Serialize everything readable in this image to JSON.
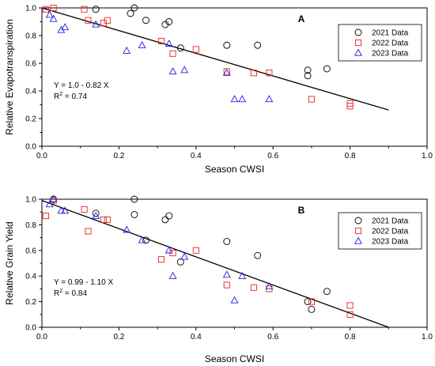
{
  "chart_data": [
    {
      "type": "scatter",
      "panel_label": "A",
      "xlabel": "Season CWSI",
      "ylabel": "Relative Evapotranspiration",
      "xlim": [
        0.0,
        1.0
      ],
      "ylim": [
        0.0,
        1.0
      ],
      "xticks": [
        "0.0",
        "0.2",
        "0.4",
        "0.6",
        "0.8",
        "1.0"
      ],
      "yticks": [
        "0.0",
        "0.2",
        "0.4",
        "0.6",
        "0.8",
        "1.0"
      ],
      "legend_position": "top-right",
      "equation": "Y = 1.0 - 0.82 X",
      "r2_prefix": "R",
      "r2_sup": "2",
      "r2_suffix": " = 0.74",
      "fit": {
        "intercept": 1.0,
        "slope": -0.82,
        "x_range": [
          0.0,
          0.9
        ]
      },
      "series": [
        {
          "name": "2021 Data",
          "marker": "circle",
          "color": "#000000",
          "points": [
            [
              0.14,
              0.99
            ],
            [
              0.24,
              1.0
            ],
            [
              0.23,
              0.96
            ],
            [
              0.27,
              0.91
            ],
            [
              0.32,
              0.88
            ],
            [
              0.33,
              0.9
            ],
            [
              0.36,
              0.71
            ],
            [
              0.48,
              0.73
            ],
            [
              0.56,
              0.73
            ],
            [
              0.69,
              0.51
            ],
            [
              0.69,
              0.55
            ],
            [
              0.74,
              0.56
            ]
          ]
        },
        {
          "name": "2022 Data",
          "marker": "square",
          "color": "#e8231f",
          "points": [
            [
              0.01,
              0.99
            ],
            [
              0.03,
              1.0
            ],
            [
              0.11,
              0.99
            ],
            [
              0.12,
              0.91
            ],
            [
              0.16,
              0.89
            ],
            [
              0.17,
              0.91
            ],
            [
              0.31,
              0.76
            ],
            [
              0.34,
              0.67
            ],
            [
              0.4,
              0.7
            ],
            [
              0.48,
              0.54
            ],
            [
              0.55,
              0.53
            ],
            [
              0.59,
              0.53
            ],
            [
              0.7,
              0.34
            ],
            [
              0.8,
              0.31
            ],
            [
              0.8,
              0.29
            ]
          ]
        },
        {
          "name": "2023 Data",
          "marker": "triangle",
          "color": "#2020e0",
          "points": [
            [
              0.02,
              0.95
            ],
            [
              0.03,
              0.92
            ],
            [
              0.05,
              0.84
            ],
            [
              0.06,
              0.86
            ],
            [
              0.14,
              0.88
            ],
            [
              0.22,
              0.69
            ],
            [
              0.26,
              0.73
            ],
            [
              0.33,
              0.74
            ],
            [
              0.34,
              0.54
            ],
            [
              0.37,
              0.55
            ],
            [
              0.48,
              0.53
            ],
            [
              0.5,
              0.34
            ],
            [
              0.52,
              0.34
            ],
            [
              0.59,
              0.34
            ]
          ]
        }
      ]
    },
    {
      "type": "scatter",
      "panel_label": "B",
      "xlabel": "Season CWSI",
      "ylabel": "Relative Grain Yield",
      "xlim": [
        0.0,
        1.0
      ],
      "ylim": [
        0.0,
        1.0
      ],
      "xticks": [
        "0.0",
        "0.2",
        "0.4",
        "0.6",
        "0.8",
        "1.0"
      ],
      "yticks": [
        "0.0",
        "0.2",
        "0.4",
        "0.6",
        "0.8",
        "1.0"
      ],
      "legend_position": "top-right",
      "equation": "Y = 0.99 - 1.10 X",
      "r2_prefix": "R",
      "r2_sup": "2",
      "r2_suffix": " = 0.84",
      "fit": {
        "intercept": 0.99,
        "slope": -1.1,
        "x_range": [
          0.0,
          0.9
        ]
      },
      "series": [
        {
          "name": "2021 Data",
          "marker": "circle",
          "color": "#000000",
          "points": [
            [
              0.03,
              1.0
            ],
            [
              0.14,
              0.89
            ],
            [
              0.24,
              1.0
            ],
            [
              0.24,
              0.88
            ],
            [
              0.27,
              0.68
            ],
            [
              0.32,
              0.84
            ],
            [
              0.33,
              0.87
            ],
            [
              0.36,
              0.51
            ],
            [
              0.48,
              0.67
            ],
            [
              0.56,
              0.56
            ],
            [
              0.69,
              0.2
            ],
            [
              0.7,
              0.14
            ],
            [
              0.74,
              0.28
            ]
          ]
        },
        {
          "name": "2022 Data",
          "marker": "square",
          "color": "#e8231f",
          "points": [
            [
              0.01,
              0.87
            ],
            [
              0.03,
              0.99
            ],
            [
              0.11,
              0.92
            ],
            [
              0.12,
              0.75
            ],
            [
              0.16,
              0.84
            ],
            [
              0.17,
              0.84
            ],
            [
              0.31,
              0.53
            ],
            [
              0.34,
              0.58
            ],
            [
              0.4,
              0.6
            ],
            [
              0.48,
              0.33
            ],
            [
              0.55,
              0.31
            ],
            [
              0.59,
              0.3
            ],
            [
              0.7,
              0.2
            ],
            [
              0.8,
              0.17
            ],
            [
              0.8,
              0.1
            ]
          ]
        },
        {
          "name": "2023 Data",
          "marker": "triangle",
          "color": "#2020e0",
          "points": [
            [
              0.02,
              0.96
            ],
            [
              0.03,
              1.0
            ],
            [
              0.05,
              0.91
            ],
            [
              0.06,
              0.91
            ],
            [
              0.14,
              0.87
            ],
            [
              0.22,
              0.76
            ],
            [
              0.26,
              0.68
            ],
            [
              0.33,
              0.6
            ],
            [
              0.34,
              0.4
            ],
            [
              0.37,
              0.55
            ],
            [
              0.48,
              0.41
            ],
            [
              0.5,
              0.21
            ],
            [
              0.52,
              0.4
            ],
            [
              0.59,
              0.32
            ]
          ]
        }
      ]
    }
  ]
}
